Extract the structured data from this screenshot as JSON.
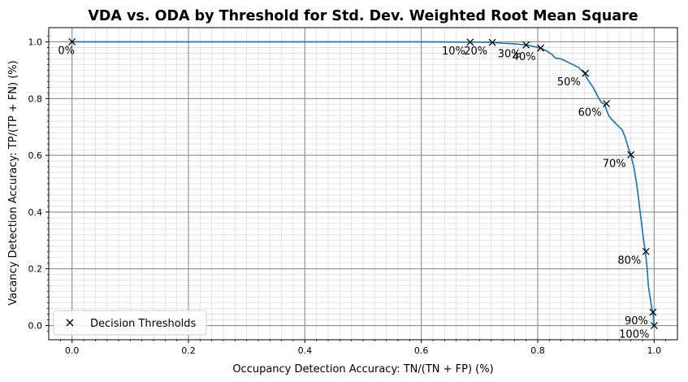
{
  "chart_data": {
    "type": "line",
    "title": "VDA vs. ODA by Threshold for Std. Dev. Weighted Root Mean Square",
    "xlabel": "Occupancy Detection Accuracy: TN/(TN + FP) (%)",
    "ylabel": "Vacancy Detection Accuracy: TP/(TP + FN) (%)",
    "xlim": [
      -0.04,
      1.04
    ],
    "ylim": [
      -0.05,
      1.05
    ],
    "x_ticks": [
      "0.0",
      "0.2",
      "0.4",
      "0.6",
      "0.8",
      "1.0"
    ],
    "y_ticks": [
      "0.0",
      "0.2",
      "0.4",
      "0.6",
      "0.8",
      "1.0"
    ],
    "grid": true,
    "legend_position": "lower-left",
    "colors": {
      "curve": "#1f77b4",
      "marker": "#000000",
      "grid_major": "#8c8c8c",
      "grid_minor": "#dddddd"
    },
    "series": [
      {
        "x": [
          0.0,
          0.2,
          0.4,
          0.6,
          0.684,
          0.7,
          0.722,
          0.74,
          0.76,
          0.78,
          0.79,
          0.805,
          0.815,
          0.825,
          0.83,
          0.84,
          0.85,
          0.86,
          0.87,
          0.88,
          0.885,
          0.89,
          0.895,
          0.9,
          0.905,
          0.91,
          0.915,
          0.918,
          0.922,
          0.928,
          0.935,
          0.94,
          0.945,
          0.95,
          0.955,
          0.96,
          0.965,
          0.97,
          0.973,
          0.976,
          0.979,
          0.982,
          0.985,
          0.988,
          0.99,
          0.993,
          0.996,
          0.998,
          1.0
        ],
        "y": [
          1.0,
          1.0,
          1.0,
          1.0,
          0.999,
          0.999,
          0.998,
          0.995,
          0.993,
          0.989,
          0.985,
          0.978,
          0.968,
          0.955,
          0.943,
          0.94,
          0.93,
          0.92,
          0.91,
          0.89,
          0.87,
          0.855,
          0.84,
          0.82,
          0.8,
          0.785,
          0.78,
          0.76,
          0.74,
          0.725,
          0.71,
          0.7,
          0.69,
          0.665,
          0.63,
          0.6,
          0.56,
          0.5,
          0.45,
          0.4,
          0.35,
          0.3,
          0.26,
          0.2,
          0.14,
          0.1,
          0.06,
          0.045,
          0.0
        ]
      }
    ],
    "markers": [
      {
        "label": "0%",
        "x": 0.0,
        "y": 1.0
      },
      {
        "label": "10%",
        "x": 0.684,
        "y": 0.999
      },
      {
        "label": "20%",
        "x": 0.722,
        "y": 0.998
      },
      {
        "label": "30%",
        "x": 0.78,
        "y": 0.989
      },
      {
        "label": "40%",
        "x": 0.805,
        "y": 0.978
      },
      {
        "label": "50%",
        "x": 0.882,
        "y": 0.889
      },
      {
        "label": "60%",
        "x": 0.918,
        "y": 0.782
      },
      {
        "label": "70%",
        "x": 0.96,
        "y": 0.602
      },
      {
        "label": "80%",
        "x": 0.986,
        "y": 0.261
      },
      {
        "label": "90%",
        "x": 0.998,
        "y": 0.047
      },
      {
        "label": "100%",
        "x": 1.0,
        "y": 0.0
      }
    ],
    "legend": {
      "entries": [
        "Decision Thresholds"
      ]
    }
  }
}
